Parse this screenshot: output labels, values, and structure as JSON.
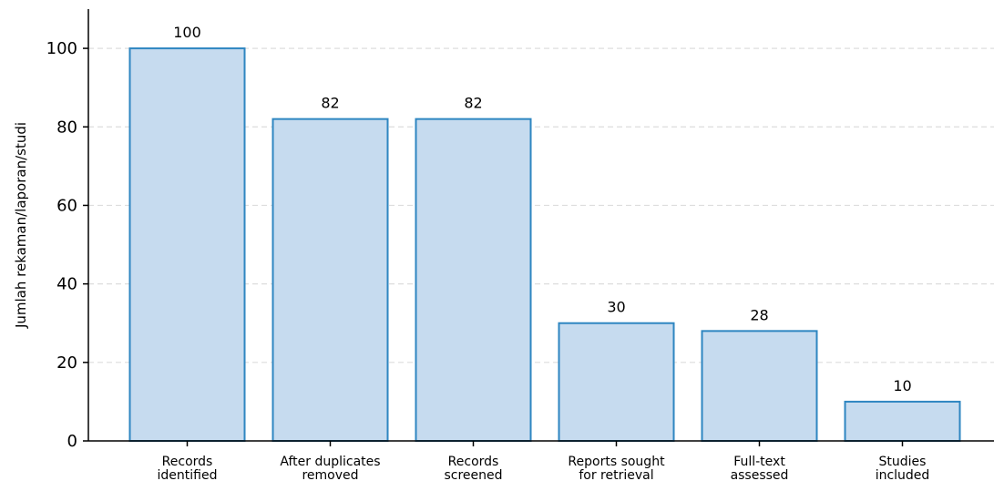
{
  "chart_data": {
    "type": "bar",
    "title": "",
    "xlabel": "",
    "ylabel": "Jumlah rekaman/laporan/studi",
    "ylim": [
      0,
      110
    ],
    "yticks": [
      0,
      20,
      40,
      60,
      80,
      100
    ],
    "grid": "horizontal-dashed",
    "categories": [
      [
        "Records",
        "identified"
      ],
      [
        "After duplicates",
        "removed"
      ],
      [
        "Records",
        "screened"
      ],
      [
        "Reports sought",
        "for retrieval"
      ],
      [
        "Full-text",
        "assessed"
      ],
      [
        "Studies",
        "included"
      ]
    ],
    "values": [
      100,
      82,
      82,
      30,
      28,
      10
    ],
    "data_labels": [
      "100",
      "82",
      "82",
      "30",
      "28",
      "10"
    ],
    "colors": {
      "bar_fill": "#c6dbef",
      "bar_edge": "#2e86c1",
      "grid": "#dddddd",
      "axis": "#000000"
    }
  }
}
